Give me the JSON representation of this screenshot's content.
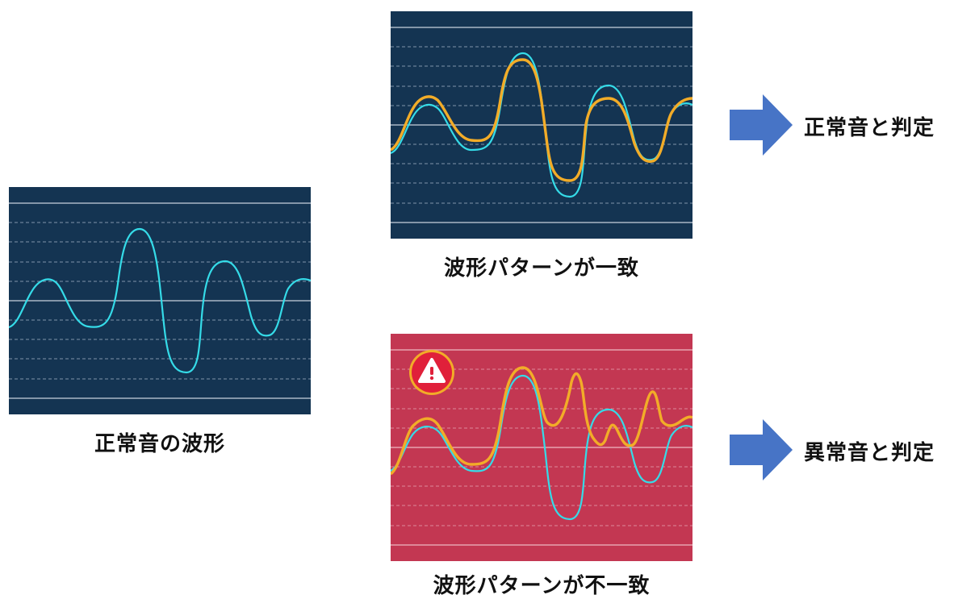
{
  "colors": {
    "panel_normal": "#143452",
    "panel_alert": "#c33752",
    "reference_wave": "#35dbe8",
    "input_wave": "#f2ac28",
    "grid_solid": "#a9b7c6",
    "grid_dashed": "#7f94aa",
    "arrow_fill": "#4774c6",
    "warning_badge": "#e0203a",
    "warning_ring": "#f2ac28"
  },
  "reference": {
    "caption": "正常音の波形",
    "icon": "waveform"
  },
  "comparison_match": {
    "caption": "波形パターンが一致",
    "verdict": "正常音と判定",
    "arrow_icon": "right-arrow"
  },
  "comparison_mismatch": {
    "caption": "波形パターンが不一致",
    "verdict": "異常音と判定",
    "arrow_icon": "right-arrow",
    "badge_icon": "warning-triangle"
  }
}
